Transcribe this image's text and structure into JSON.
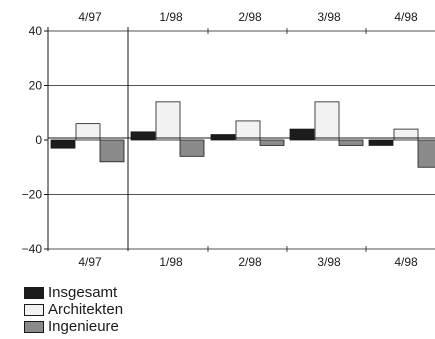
{
  "chart_data": {
    "type": "bar",
    "categories": [
      "4/97",
      "1/98",
      "2/98",
      "3/98",
      "4/98"
    ],
    "series": [
      {
        "name": "Insgesamt",
        "values": [
          -3,
          3,
          2,
          4,
          -2
        ]
      },
      {
        "name": "Architekten",
        "values": [
          6,
          14,
          7,
          14,
          4
        ]
      },
      {
        "name": "Ingenieure",
        "values": [
          -8,
          -6,
          -2,
          -2,
          -10
        ]
      }
    ],
    "ylim": [
      -40,
      40
    ],
    "yticks": [
      40,
      20,
      0,
      -20,
      -40
    ],
    "ytick_labels": [
      "40",
      "20",
      "0",
      "−20",
      "−40"
    ],
    "grid": true,
    "legend": "bottom-left",
    "colors": {
      "Insgesamt": "#1c1c1c",
      "Architekten": "#f2f2f2",
      "Ingenieure": "#8a8a8a"
    },
    "title": "",
    "xlabel": "",
    "ylabel": ""
  }
}
